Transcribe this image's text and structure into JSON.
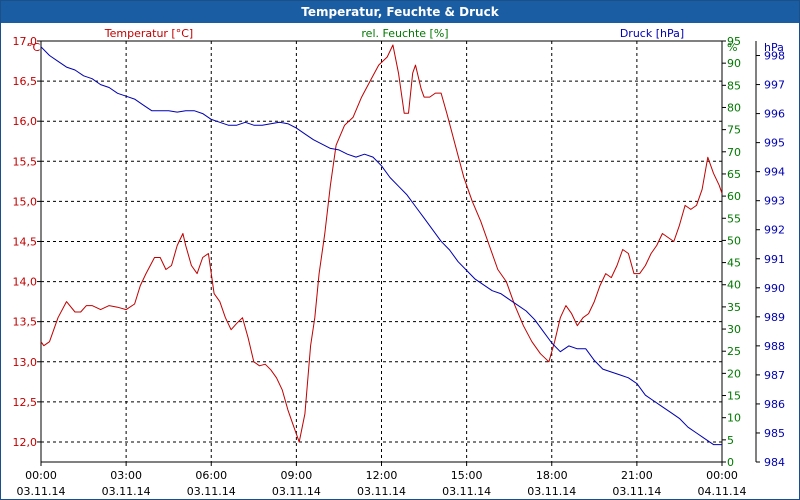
{
  "window": {
    "title": "Temperatur, Feuchte & Druck"
  },
  "chart_data": {
    "type": "line",
    "title": "Temperatur, Feuchte & Druck",
    "grid": true,
    "x_range_hours": [
      0,
      24
    ],
    "x_tick_labels": [
      {
        "time": "00:00",
        "date": "03.11.14",
        "hour": 0
      },
      {
        "time": "03:00",
        "date": "03.11.14",
        "hour": 3
      },
      {
        "time": "06:00",
        "date": "03.11.14",
        "hour": 6
      },
      {
        "time": "09:00",
        "date": "03.11.14",
        "hour": 9
      },
      {
        "time": "12:00",
        "date": "03.11.14",
        "hour": 12
      },
      {
        "time": "15:00",
        "date": "03.11.14",
        "hour": 15
      },
      {
        "time": "18:00",
        "date": "03.11.14",
        "hour": 18
      },
      {
        "time": "21:00",
        "date": "03.11.14",
        "hour": 21
      },
      {
        "time": "00:00",
        "date": "04.11.14",
        "hour": 24
      }
    ],
    "axes": {
      "temperature": {
        "title": "Temperatur [°C]",
        "unit": "°C",
        "color": "#c00000",
        "range": [
          11.75,
          17.0
        ],
        "ticks": [
          12.0,
          12.5,
          13.0,
          13.5,
          14.0,
          14.5,
          15.0,
          15.5,
          16.0,
          16.5,
          17.0
        ],
        "tick_labels": [
          "12,0",
          "12,5",
          "13,0",
          "13,5",
          "14,0",
          "14,5",
          "15,0",
          "15,5",
          "16,0",
          "16,5",
          "17,0"
        ]
      },
      "humidity": {
        "title": "rel. Feuchte [%]",
        "unit": "%",
        "color": "#007800",
        "range": [
          0,
          95
        ],
        "ticks": [
          0,
          5,
          10,
          15,
          20,
          25,
          30,
          35,
          40,
          45,
          50,
          55,
          60,
          65,
          70,
          75,
          80,
          85,
          90,
          95
        ],
        "tick_labels": [
          "0",
          "5",
          "10",
          "15",
          "20",
          "25",
          "30",
          "35",
          "40",
          "45",
          "50",
          "55",
          "60",
          "65",
          "70",
          "75",
          "80",
          "85",
          "90",
          "95"
        ]
      },
      "pressure": {
        "title": "Druck [hPa]",
        "unit": "hPa",
        "color": "#0000b0",
        "range": [
          984,
          998.5
        ],
        "ticks": [
          984,
          985,
          986,
          987,
          988,
          989,
          990,
          991,
          992,
          993,
          994,
          995,
          996,
          997,
          998
        ],
        "tick_labels": [
          "984",
          "985",
          "986",
          "987",
          "988",
          "989",
          "990",
          "991",
          "992",
          "993",
          "994",
          "995",
          "996",
          "997",
          "998"
        ]
      }
    },
    "series": [
      {
        "name": "Temperatur",
        "axis": "temperature",
        "color": "#c00000",
        "x": [
          0,
          0.1,
          0.3,
          0.6,
          0.9,
          1.2,
          1.4,
          1.6,
          1.8,
          2.1,
          2.4,
          2.7,
          3.0,
          3.3,
          3.5,
          3.7,
          4.0,
          4.2,
          4.4,
          4.6,
          4.8,
          5.0,
          5.1,
          5.3,
          5.5,
          5.7,
          5.9,
          6.1,
          6.3,
          6.5,
          6.7,
          6.9,
          7.1,
          7.3,
          7.5,
          7.7,
          7.9,
          8.1,
          8.3,
          8.5,
          8.7,
          8.9,
          9.1,
          9.3,
          9.5,
          9.65,
          9.8,
          10.0,
          10.2,
          10.4,
          10.7,
          11.0,
          11.3,
          11.6,
          11.9,
          12.2,
          12.4,
          12.6,
          12.8,
          12.95,
          13.1,
          13.2,
          13.4,
          13.5,
          13.7,
          13.9,
          14.1,
          14.3,
          14.6,
          14.9,
          15.2,
          15.5,
          15.8,
          16.1,
          16.4,
          16.7,
          17.0,
          17.3,
          17.6,
          17.9,
          18.1,
          18.3,
          18.5,
          18.7,
          18.9,
          19.1,
          19.3,
          19.5,
          19.7,
          19.9,
          20.1,
          20.3,
          20.5,
          20.7,
          20.9,
          21.1,
          21.3,
          21.5,
          21.7,
          21.9,
          22.1,
          22.3,
          22.5,
          22.7,
          22.9,
          23.1,
          23.3,
          23.5,
          23.7,
          23.9,
          24.0
        ],
        "values": [
          13.25,
          13.2,
          13.25,
          13.55,
          13.75,
          13.62,
          13.62,
          13.7,
          13.7,
          13.65,
          13.7,
          13.68,
          13.65,
          13.72,
          13.95,
          14.1,
          14.3,
          14.3,
          14.15,
          14.2,
          14.45,
          14.6,
          14.45,
          14.2,
          14.1,
          14.3,
          14.35,
          13.85,
          13.75,
          13.55,
          13.4,
          13.48,
          13.55,
          13.3,
          13.0,
          12.95,
          12.97,
          12.9,
          12.8,
          12.65,
          12.4,
          12.2,
          12.0,
          12.35,
          13.2,
          13.55,
          14.1,
          14.6,
          15.2,
          15.7,
          15.95,
          16.05,
          16.3,
          16.5,
          16.7,
          16.8,
          16.95,
          16.6,
          16.1,
          16.1,
          16.6,
          16.7,
          16.4,
          16.3,
          16.3,
          16.35,
          16.35,
          16.1,
          15.7,
          15.3,
          15.0,
          14.75,
          14.45,
          14.15,
          14.0,
          13.7,
          13.45,
          13.25,
          13.1,
          13.0,
          13.25,
          13.55,
          13.7,
          13.6,
          13.45,
          13.55,
          13.6,
          13.75,
          13.95,
          14.1,
          14.05,
          14.2,
          14.4,
          14.35,
          14.1,
          14.1,
          14.2,
          14.35,
          14.45,
          14.6,
          14.55,
          14.5,
          14.7,
          14.95,
          14.9,
          14.95,
          15.15,
          15.55,
          15.35,
          15.2,
          15.1
        ]
      },
      {
        "name": "rel. Feuchte",
        "axis": "humidity",
        "color": "#007800",
        "x": [],
        "values": []
      },
      {
        "name": "Druck",
        "axis": "pressure",
        "color": "#0000b0",
        "x": [
          0,
          0.3,
          0.6,
          0.9,
          1.2,
          1.5,
          1.8,
          2.1,
          2.4,
          2.7,
          3.0,
          3.3,
          3.6,
          3.9,
          4.2,
          4.5,
          4.8,
          5.1,
          5.4,
          5.7,
          6.0,
          6.3,
          6.6,
          6.9,
          7.2,
          7.5,
          7.8,
          8.1,
          8.4,
          8.7,
          9.0,
          9.3,
          9.6,
          9.9,
          10.2,
          10.5,
          10.8,
          11.1,
          11.4,
          11.7,
          12.0,
          12.3,
          12.6,
          12.9,
          13.2,
          13.5,
          13.8,
          14.1,
          14.4,
          14.7,
          15.0,
          15.3,
          15.6,
          15.9,
          16.2,
          16.5,
          16.8,
          17.1,
          17.4,
          17.7,
          18.0,
          18.3,
          18.6,
          18.9,
          19.2,
          19.5,
          19.8,
          20.1,
          20.4,
          20.7,
          21.0,
          21.3,
          21.6,
          21.9,
          22.2,
          22.5,
          22.8,
          23.1,
          23.4,
          23.7,
          24.0
        ],
        "values": [
          998.3,
          998.0,
          997.8,
          997.6,
          997.5,
          997.3,
          997.2,
          997.0,
          996.9,
          996.7,
          996.6,
          996.5,
          996.3,
          996.1,
          996.1,
          996.1,
          996.05,
          996.1,
          996.1,
          996.0,
          995.8,
          995.7,
          995.6,
          995.6,
          995.7,
          995.6,
          995.6,
          995.65,
          995.7,
          995.65,
          995.5,
          995.3,
          995.1,
          994.95,
          994.8,
          994.75,
          994.6,
          994.5,
          994.6,
          994.5,
          994.2,
          993.8,
          993.5,
          993.2,
          992.8,
          992.4,
          992.0,
          991.6,
          991.3,
          990.9,
          990.6,
          990.3,
          990.1,
          989.9,
          989.8,
          989.6,
          989.4,
          989.2,
          988.9,
          988.5,
          988.1,
          987.8,
          988.0,
          987.9,
          987.9,
          987.5,
          987.2,
          987.1,
          987.0,
          986.9,
          986.7,
          986.3,
          986.1,
          985.9,
          985.7,
          985.5,
          985.2,
          985.0,
          984.8,
          984.6,
          984.6
        ]
      }
    ]
  }
}
